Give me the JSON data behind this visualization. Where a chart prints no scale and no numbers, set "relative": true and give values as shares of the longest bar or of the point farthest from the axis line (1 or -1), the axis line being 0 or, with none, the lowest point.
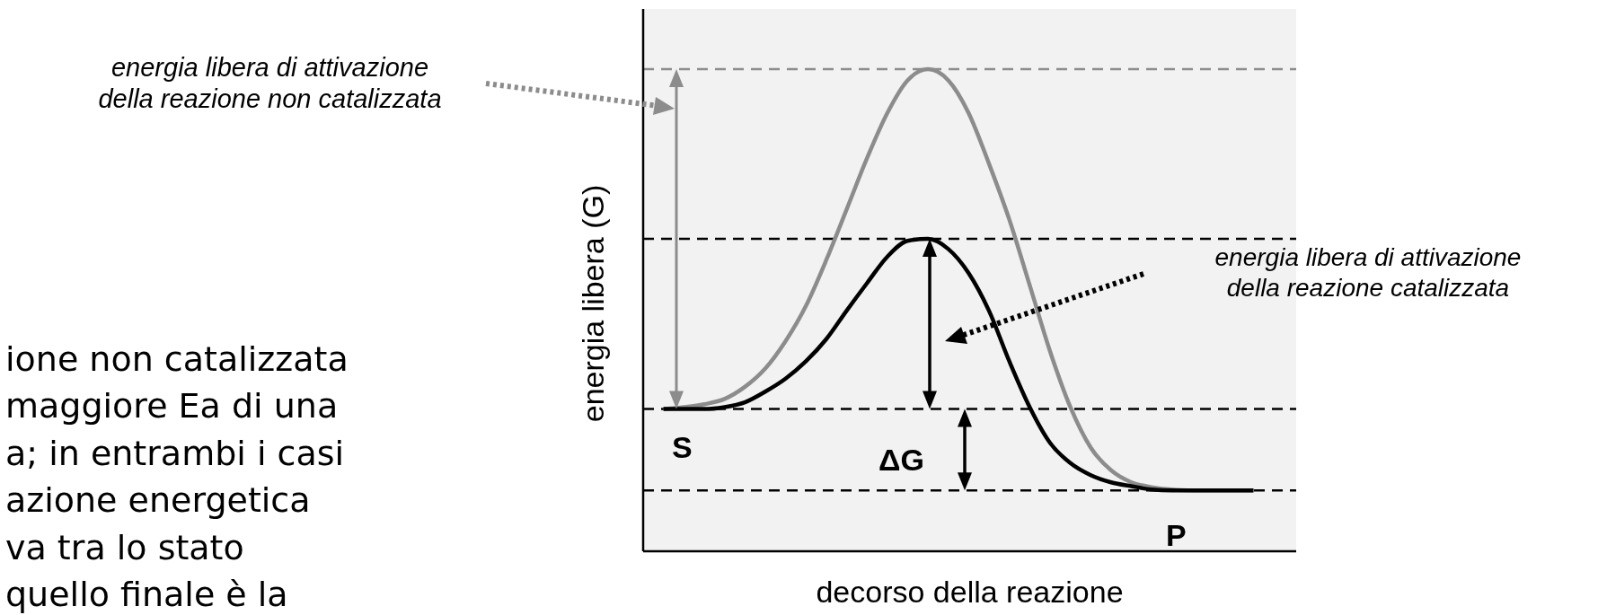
{
  "chart_data": {
    "type": "line",
    "relative": true,
    "xlabel": "decorso della reazione",
    "ylabel": "energia libera (G)",
    "categories": [
      null,
      null,
      null,
      null,
      null,
      null,
      null,
      null,
      null,
      null,
      null,
      null,
      null,
      null,
      null,
      null,
      null,
      null,
      null,
      null,
      null,
      null,
      null,
      null,
      null,
      null,
      null,
      null,
      null,
      null
    ],
    "series": [
      {
        "color": "#8c8c8c",
        "values": [
          0.295,
          0.299,
          0.305,
          0.316,
          0.341,
          0.379,
          0.436,
          0.509,
          0.604,
          0.709,
          0.815,
          0.909,
          0.977,
          1,
          0.977,
          0.909,
          0.804,
          0.688,
          0.552,
          0.415,
          0.299,
          0.215,
          0.168,
          0.143,
          0.133,
          0.128,
          0.126,
          0.126,
          0.126,
          0.126
        ]
      },
      {
        "color": "#000000",
        "values": [
          0.295,
          0.295,
          0.295,
          0.299,
          0.309,
          0.331,
          0.358,
          0.394,
          0.44,
          0.499,
          0.556,
          0.611,
          0.644,
          0.648,
          0.627,
          0.577,
          0.499,
          0.394,
          0.299,
          0.225,
          0.183,
          0.158,
          0.143,
          0.135,
          0.128,
          0.126,
          0.126,
          0.126,
          0.126,
          0.126
        ]
      }
    ],
    "ref_lines": [
      {
        "axis": "y",
        "value": 1,
        "color": "#8c8c8c",
        "line_style": "dashed"
      },
      {
        "axis": "y",
        "value": 0.648,
        "color": "#000000",
        "line_style": "dashed"
      },
      {
        "axis": "y",
        "value": 0.295,
        "color": "#000000",
        "line_style": "dashed"
      },
      {
        "axis": "y",
        "value": 0.126,
        "color": "#000000",
        "line_style": "dashed"
      }
    ],
    "annotations": [
      "energia libera di attivazione\ndella reazione non catalizzata",
      "energia libera di attivazione\ndella reazione catalizzata",
      {
        "text": "S",
        "y": 0.295
      },
      {
        "text": "P",
        "y": 0.126
      },
      "ΔG",
      "ione non catalizzata\nmaggiore Ea di una\na; in entrambi i casi\nazione energetica\nva tra lo stato\nquello finale è la"
    ],
    "grid": false,
    "legend": false,
    "marker": "none",
    "line_style": "solid"
  }
}
